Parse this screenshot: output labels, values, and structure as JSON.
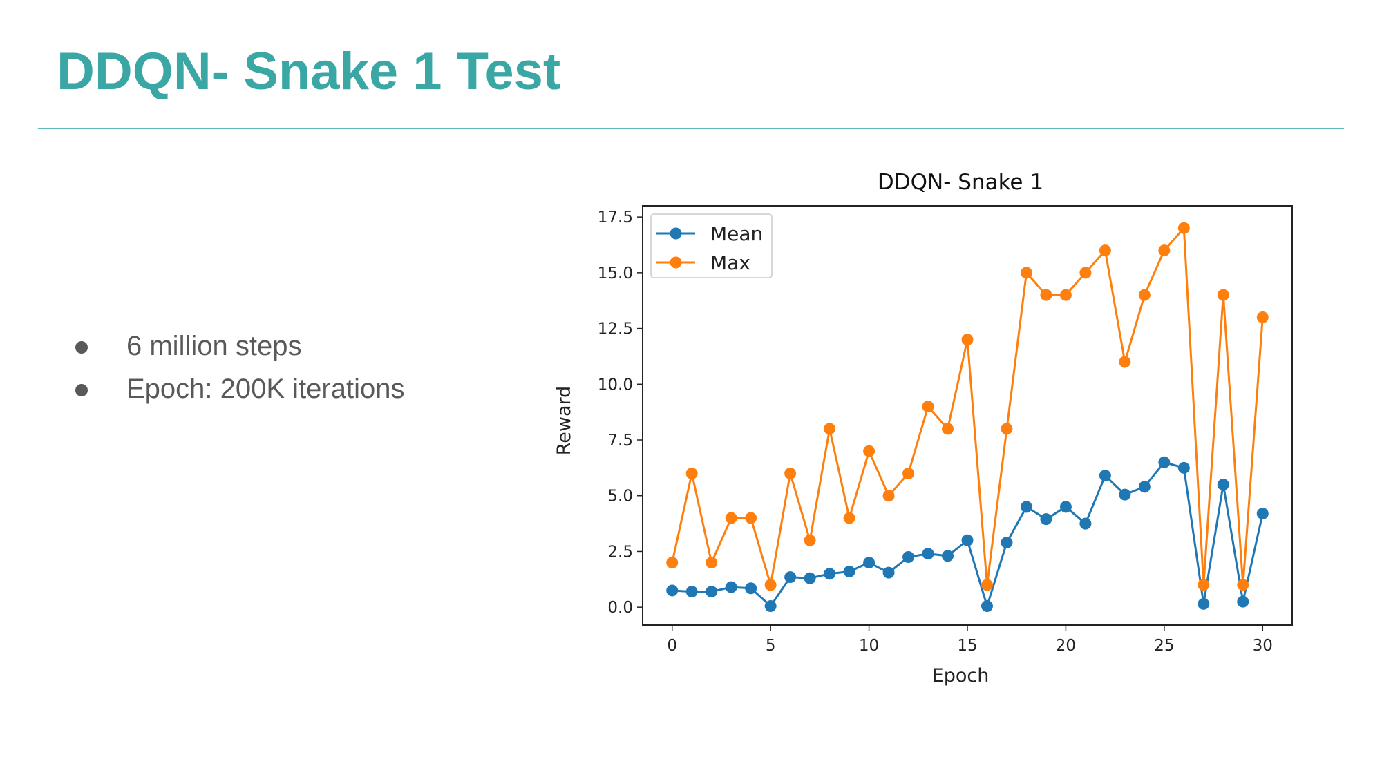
{
  "slide": {
    "title": "DDQN- Snake 1 Test",
    "bullets": [
      "6 million steps",
      "Epoch: 200K iterations"
    ]
  },
  "colors": {
    "accent": "#3aa7a5",
    "mean": "#1f77b4",
    "max": "#ff7f0e"
  },
  "chart_data": {
    "type": "line",
    "title": "DDQN- Snake 1",
    "xlabel": "Epoch",
    "ylabel": "Reward",
    "xlim": [
      -1.5,
      31.5
    ],
    "ylim": [
      -0.8,
      18.0
    ],
    "xticks": [
      0,
      5,
      10,
      15,
      20,
      25,
      30
    ],
    "yticks": [
      0.0,
      2.5,
      5.0,
      7.5,
      10.0,
      12.5,
      15.0,
      17.5
    ],
    "xtick_labels": [
      "0",
      "5",
      "10",
      "15",
      "20",
      "25",
      "30"
    ],
    "ytick_labels": [
      "0.0",
      "2.5",
      "5.0",
      "7.5",
      "10.0",
      "12.5",
      "15.0",
      "17.5"
    ],
    "legend_position": "top-left",
    "grid": false,
    "x": [
      0,
      1,
      2,
      3,
      4,
      5,
      6,
      7,
      8,
      9,
      10,
      11,
      12,
      13,
      14,
      15,
      16,
      17,
      18,
      19,
      20,
      21,
      22,
      23,
      24,
      25,
      26,
      27,
      28,
      29,
      30
    ],
    "series": [
      {
        "name": "Mean",
        "color": "#1f77b4",
        "values": [
          0.75,
          0.7,
          0.7,
          0.9,
          0.85,
          0.05,
          1.35,
          1.3,
          1.5,
          1.6,
          2.0,
          1.55,
          2.25,
          2.4,
          2.3,
          3.0,
          0.05,
          2.9,
          4.5,
          3.95,
          4.5,
          3.75,
          5.9,
          5.05,
          5.4,
          6.5,
          6.25,
          0.15,
          5.5,
          0.25,
          4.2
        ]
      },
      {
        "name": "Max",
        "color": "#ff7f0e",
        "values": [
          2,
          6,
          2,
          4,
          4,
          1,
          6,
          3,
          8,
          4,
          7,
          5,
          6,
          9,
          8,
          12,
          1,
          8,
          15,
          14,
          14,
          15,
          16,
          11,
          14,
          16,
          17,
          1,
          14,
          1,
          13
        ]
      }
    ]
  }
}
